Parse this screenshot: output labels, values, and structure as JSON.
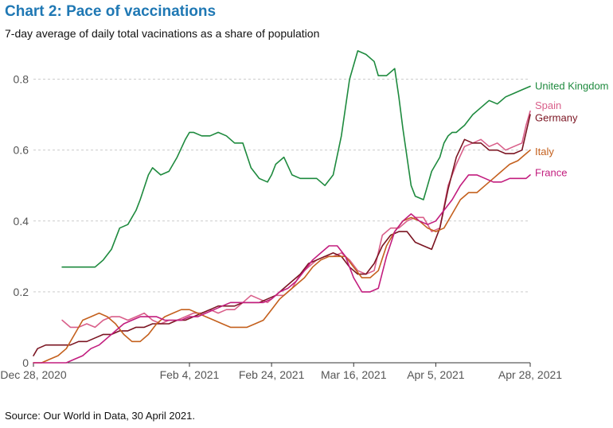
{
  "chart_data": {
    "type": "line",
    "title": "Chart 2: Pace of vaccinations",
    "subtitle": "7-day average of daily total vacinations as a share of population",
    "source": "Source: Our World in Data, 30 April 2021.",
    "xlabel": "",
    "ylabel": "",
    "xlim": [
      0,
      121
    ],
    "ylim": [
      0,
      0.9
    ],
    "y_ticks": [
      0,
      0.2,
      0.4,
      0.6,
      0.8
    ],
    "y_tick_labels": [
      "0",
      "0.2",
      "0.4",
      "0.6",
      "0.8"
    ],
    "x_ticks": [
      {
        "day": 0,
        "label": "Dec 28, 2020"
      },
      {
        "day": 38,
        "label": "Feb 4, 2021"
      },
      {
        "day": 58,
        "label": "Feb 24, 2021"
      },
      {
        "day": 78,
        "label": "Mar 16, 2021"
      },
      {
        "day": 98,
        "label": "Apr 5, 2021"
      },
      {
        "day": 121,
        "label": "Apr 28, 2021"
      }
    ],
    "grid": true,
    "series": [
      {
        "name": "United Kingdom",
        "color": "#1e8a3e",
        "label_y": 0.78,
        "x": [
          7,
          14,
          15,
          17,
          19,
          21,
          23,
          25,
          26,
          28,
          29,
          31,
          33,
          35,
          37,
          38,
          39,
          41,
          43,
          45,
          47,
          49,
          51,
          53,
          55,
          57,
          58,
          59,
          61,
          63,
          65,
          67,
          69,
          71,
          73,
          75,
          77,
          79,
          81,
          83,
          84,
          86,
          88,
          89,
          90,
          92,
          93,
          95,
          96,
          97,
          99,
          100,
          101,
          102,
          103,
          104,
          105,
          107,
          109,
          111,
          113,
          115,
          117,
          119,
          121
        ],
        "values": [
          0.27,
          0.27,
          0.27,
          0.29,
          0.32,
          0.38,
          0.39,
          0.43,
          0.46,
          0.53,
          0.55,
          0.53,
          0.54,
          0.58,
          0.63,
          0.65,
          0.65,
          0.64,
          0.64,
          0.65,
          0.64,
          0.62,
          0.62,
          0.55,
          0.52,
          0.51,
          0.53,
          0.56,
          0.58,
          0.53,
          0.52,
          0.52,
          0.52,
          0.5,
          0.53,
          0.64,
          0.8,
          0.88,
          0.87,
          0.85,
          0.81,
          0.81,
          0.83,
          0.75,
          0.66,
          0.5,
          0.47,
          0.46,
          0.5,
          0.54,
          0.58,
          0.62,
          0.64,
          0.65,
          0.65,
          0.66,
          0.67,
          0.7,
          0.72,
          0.74,
          0.73,
          0.75,
          0.76,
          0.77,
          0.78
        ]
      },
      {
        "name": "Spain",
        "color": "#d95f8a",
        "label_y": 0.725,
        "x": [
          7,
          9,
          11,
          13,
          15,
          17,
          19,
          21,
          23,
          25,
          27,
          29,
          31,
          33,
          35,
          37,
          39,
          41,
          43,
          45,
          47,
          49,
          51,
          53,
          55,
          57,
          59,
          61,
          63,
          65,
          67,
          69,
          71,
          73,
          75,
          77,
          79,
          81,
          83,
          85,
          87,
          89,
          91,
          93,
          95,
          97,
          99,
          101,
          103,
          105,
          107,
          109,
          111,
          113,
          115,
          117,
          119,
          120,
          121
        ],
        "values": [
          0.12,
          0.1,
          0.1,
          0.11,
          0.1,
          0.12,
          0.13,
          0.13,
          0.12,
          0.13,
          0.14,
          0.12,
          0.11,
          0.12,
          0.12,
          0.13,
          0.14,
          0.14,
          0.15,
          0.14,
          0.15,
          0.15,
          0.17,
          0.19,
          0.18,
          0.17,
          0.19,
          0.19,
          0.21,
          0.25,
          0.27,
          0.29,
          0.3,
          0.3,
          0.31,
          0.29,
          0.26,
          0.25,
          0.26,
          0.36,
          0.38,
          0.38,
          0.4,
          0.41,
          0.41,
          0.37,
          0.38,
          0.5,
          0.56,
          0.61,
          0.62,
          0.63,
          0.61,
          0.62,
          0.6,
          0.61,
          0.62,
          0.67,
          0.71
        ]
      },
      {
        "name": "Germany",
        "color": "#7b1522",
        "label_y": 0.69,
        "x": [
          0,
          1,
          3,
          5,
          7,
          9,
          11,
          13,
          15,
          17,
          19,
          21,
          23,
          25,
          27,
          29,
          31,
          33,
          35,
          37,
          39,
          41,
          43,
          45,
          47,
          49,
          51,
          53,
          55,
          57,
          59,
          61,
          63,
          65,
          67,
          69,
          71,
          73,
          75,
          77,
          79,
          81,
          83,
          85,
          87,
          89,
          91,
          93,
          95,
          97,
          99,
          101,
          103,
          105,
          107,
          109,
          111,
          113,
          115,
          117,
          119,
          121
        ],
        "values": [
          0.02,
          0.04,
          0.05,
          0.05,
          0.05,
          0.05,
          0.06,
          0.06,
          0.07,
          0.08,
          0.08,
          0.09,
          0.09,
          0.1,
          0.1,
          0.11,
          0.11,
          0.11,
          0.12,
          0.12,
          0.13,
          0.14,
          0.15,
          0.16,
          0.16,
          0.16,
          0.17,
          0.17,
          0.17,
          0.18,
          0.19,
          0.21,
          0.23,
          0.25,
          0.28,
          0.29,
          0.3,
          0.31,
          0.3,
          0.27,
          0.25,
          0.25,
          0.28,
          0.33,
          0.36,
          0.37,
          0.37,
          0.34,
          0.33,
          0.32,
          0.38,
          0.49,
          0.58,
          0.63,
          0.62,
          0.62,
          0.6,
          0.6,
          0.59,
          0.59,
          0.6,
          0.7
        ]
      },
      {
        "name": "Italy",
        "color": "#c4601d",
        "label_y": 0.595,
        "x": [
          0,
          2,
          4,
          6,
          8,
          10,
          12,
          14,
          16,
          18,
          20,
          22,
          24,
          26,
          28,
          30,
          32,
          34,
          36,
          38,
          40,
          42,
          44,
          46,
          48,
          50,
          52,
          54,
          56,
          58,
          60,
          62,
          64,
          66,
          68,
          70,
          72,
          74,
          76,
          78,
          80,
          82,
          84,
          86,
          88,
          90,
          92,
          94,
          96,
          98,
          100,
          102,
          104,
          106,
          108,
          110,
          112,
          114,
          116,
          118,
          120,
          121
        ],
        "values": [
          0.0,
          0.0,
          0.01,
          0.02,
          0.04,
          0.08,
          0.12,
          0.13,
          0.14,
          0.13,
          0.11,
          0.08,
          0.06,
          0.06,
          0.08,
          0.11,
          0.13,
          0.14,
          0.15,
          0.15,
          0.14,
          0.13,
          0.12,
          0.11,
          0.1,
          0.1,
          0.1,
          0.11,
          0.12,
          0.15,
          0.18,
          0.2,
          0.22,
          0.24,
          0.27,
          0.29,
          0.3,
          0.3,
          0.3,
          0.27,
          0.24,
          0.24,
          0.26,
          0.33,
          0.37,
          0.4,
          0.41,
          0.4,
          0.38,
          0.37,
          0.38,
          0.42,
          0.46,
          0.48,
          0.48,
          0.5,
          0.52,
          0.54,
          0.56,
          0.57,
          0.59,
          0.6
        ]
      },
      {
        "name": "France",
        "color": "#c21d7e",
        "label_y": 0.535,
        "x": [
          0,
          2,
          4,
          6,
          8,
          10,
          12,
          14,
          16,
          18,
          20,
          22,
          24,
          26,
          28,
          30,
          32,
          34,
          36,
          38,
          40,
          42,
          44,
          46,
          48,
          50,
          52,
          54,
          56,
          58,
          60,
          62,
          64,
          66,
          68,
          70,
          72,
          74,
          76,
          78,
          80,
          82,
          84,
          86,
          88,
          90,
          92,
          94,
          96,
          98,
          100,
          102,
          104,
          106,
          108,
          110,
          112,
          114,
          116,
          118,
          120,
          121
        ],
        "values": [
          0.0,
          0.0,
          0.0,
          0.0,
          0.0,
          0.01,
          0.02,
          0.04,
          0.05,
          0.07,
          0.09,
          0.11,
          0.12,
          0.13,
          0.13,
          0.13,
          0.12,
          0.12,
          0.12,
          0.13,
          0.13,
          0.14,
          0.15,
          0.16,
          0.17,
          0.17,
          0.17,
          0.17,
          0.17,
          0.18,
          0.2,
          0.21,
          0.23,
          0.26,
          0.29,
          0.31,
          0.33,
          0.33,
          0.3,
          0.24,
          0.2,
          0.2,
          0.21,
          0.3,
          0.37,
          0.4,
          0.42,
          0.4,
          0.39,
          0.4,
          0.43,
          0.46,
          0.5,
          0.53,
          0.53,
          0.52,
          0.51,
          0.51,
          0.52,
          0.52,
          0.52,
          0.53
        ]
      }
    ]
  }
}
